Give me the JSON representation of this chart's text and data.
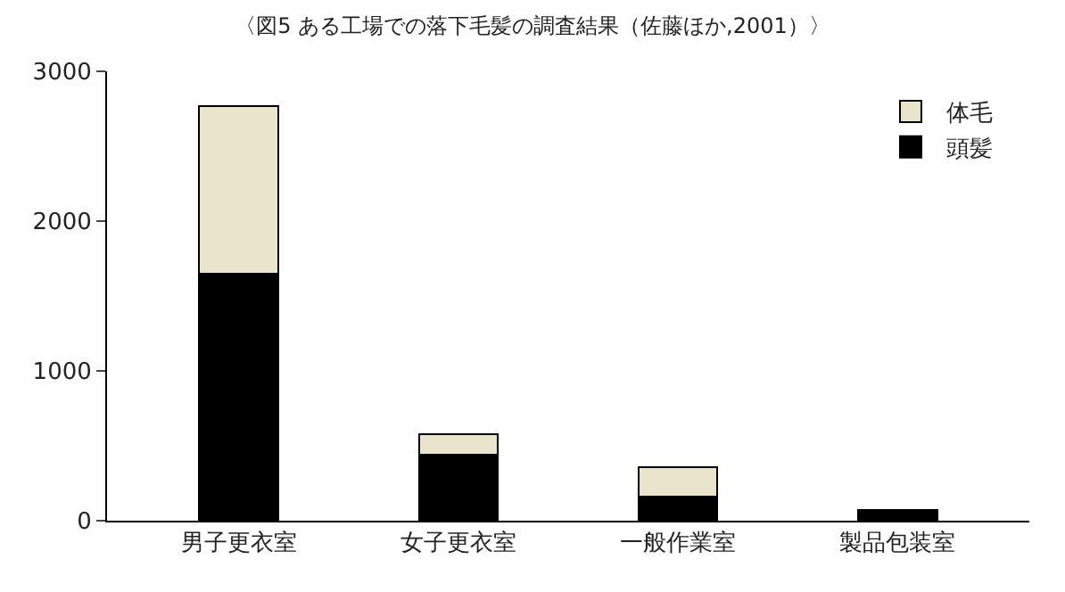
{
  "chart_data": {
    "type": "bar",
    "title": "〈図5 ある工場での落下毛髪の調査結果（佐藤ほか,2001）〉",
    "categories": [
      "男子更衣室",
      "女子更衣室",
      "一般作業室",
      "製品包装室"
    ],
    "stacked": true,
    "series": [
      {
        "name": "頭髪",
        "color": "#000000",
        "values": [
          1650,
          440,
          160,
          70
        ]
      },
      {
        "name": "体毛",
        "color": "#ebe4cc",
        "values": [
          1120,
          140,
          200,
          null
        ]
      }
    ],
    "ylim": [
      0,
      3000
    ],
    "yticks": [
      0,
      1000,
      2000,
      3000
    ],
    "legend": "top right"
  }
}
